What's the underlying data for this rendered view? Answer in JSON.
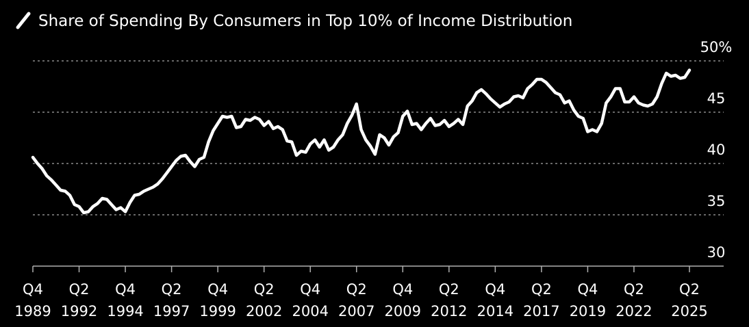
{
  "chart_data": {
    "type": "line",
    "title": "Share of Spending By Consumers in Top 10% of Income Distribution",
    "legend_icon": "line-icon",
    "xlabel": "",
    "ylabel": "",
    "ylim": [
      30,
      50
    ],
    "y_ticks": [
      {
        "value": 50,
        "label": "50%"
      },
      {
        "value": 45,
        "label": "45"
      },
      {
        "value": 40,
        "label": "40"
      },
      {
        "value": 35,
        "label": "35"
      },
      {
        "value": 30,
        "label": "30"
      }
    ],
    "grid": true,
    "x_ticks": [
      {
        "year": 1989.75,
        "quarter": "Q4",
        "label": "1989"
      },
      {
        "year": 1992.25,
        "quarter": "Q2",
        "label": "1992"
      },
      {
        "year": 1994.75,
        "quarter": "Q4",
        "label": "1994"
      },
      {
        "year": 1997.25,
        "quarter": "Q2",
        "label": "1997"
      },
      {
        "year": 1999.75,
        "quarter": "Q4",
        "label": "1999"
      },
      {
        "year": 2002.25,
        "quarter": "Q2",
        "label": "2002"
      },
      {
        "year": 2004.75,
        "quarter": "Q4",
        "label": "2004"
      },
      {
        "year": 2007.25,
        "quarter": "Q2",
        "label": "2007"
      },
      {
        "year": 2009.75,
        "quarter": "Q4",
        "label": "2009"
      },
      {
        "year": 2012.25,
        "quarter": "Q2",
        "label": "2012"
      },
      {
        "year": 2014.75,
        "quarter": "Q4",
        "label": "2014"
      },
      {
        "year": 2017.25,
        "quarter": "Q2",
        "label": "2017"
      },
      {
        "year": 2019.75,
        "quarter": "Q4",
        "label": "2019"
      },
      {
        "year": 2022.25,
        "quarter": "Q2",
        "label": "2022"
      },
      {
        "year": 2025.25,
        "quarter": "Q2",
        "label": "2025"
      }
    ],
    "series": [
      {
        "name": "Share of Spending By Consumers in Top 10% of Income Distribution",
        "color": "#ffffff",
        "x": [
          1989.75,
          1990,
          1990.25,
          1990.5,
          1990.75,
          1991,
          1991.25,
          1991.5,
          1991.75,
          1992,
          1992.25,
          1992.5,
          1992.75,
          1993,
          1993.25,
          1993.5,
          1993.75,
          1994,
          1994.25,
          1994.5,
          1994.75,
          1995,
          1995.25,
          1995.5,
          1995.75,
          1996,
          1996.25,
          1996.5,
          1996.75,
          1997,
          1997.25,
          1997.5,
          1997.75,
          1998,
          1998.25,
          1998.5,
          1998.75,
          1999,
          1999.25,
          1999.5,
          1999.75,
          2000,
          2000.25,
          2000.5,
          2000.75,
          2001,
          2001.25,
          2001.5,
          2001.75,
          2002,
          2002.25,
          2002.5,
          2002.75,
          2003,
          2003.25,
          2003.5,
          2003.75,
          2004,
          2004.25,
          2004.5,
          2004.75,
          2005,
          2005.25,
          2005.5,
          2005.75,
          2006,
          2006.25,
          2006.5,
          2006.75,
          2007,
          2007.25,
          2007.5,
          2007.75,
          2008,
          2008.25,
          2008.5,
          2008.75,
          2009,
          2009.25,
          2009.5,
          2009.75,
          2010,
          2010.25,
          2010.5,
          2010.75,
          2011,
          2011.25,
          2011.5,
          2011.75,
          2012,
          2012.25,
          2012.5,
          2012.75,
          2013,
          2013.25,
          2013.5,
          2013.75,
          2014,
          2014.25,
          2014.5,
          2014.75,
          2015,
          2015.25,
          2015.5,
          2015.75,
          2016,
          2016.25,
          2016.5,
          2016.75,
          2017,
          2017.25,
          2017.5,
          2017.75,
          2018,
          2018.25,
          2018.5,
          2018.75,
          2019,
          2019.25,
          2019.5,
          2019.75,
          2020,
          2020.25,
          2020.5,
          2020.75,
          2021,
          2021.25,
          2021.5,
          2021.75,
          2022,
          2022.25,
          2022.5,
          2022.75,
          2023,
          2023.25,
          2023.5,
          2023.75,
          2024,
          2024.25,
          2024.5,
          2024.75,
          2025,
          2025.25
        ],
        "values": [
          40.6,
          40.0,
          39.5,
          38.8,
          38.4,
          37.9,
          37.4,
          37.3,
          36.9,
          36.0,
          35.8,
          35.2,
          35.3,
          35.8,
          36.1,
          36.6,
          36.5,
          36.0,
          35.5,
          35.7,
          35.3,
          36.2,
          36.9,
          37.0,
          37.3,
          37.5,
          37.7,
          38.0,
          38.5,
          39.1,
          39.7,
          40.3,
          40.7,
          40.8,
          40.2,
          39.7,
          40.4,
          40.6,
          42.1,
          43.2,
          43.9,
          44.6,
          44.5,
          44.6,
          43.5,
          43.6,
          44.3,
          44.2,
          44.5,
          44.3,
          43.7,
          44.1,
          43.4,
          43.6,
          43.3,
          42.2,
          42.1,
          40.8,
          41.2,
          41.1,
          41.9,
          42.3,
          41.6,
          42.3,
          41.3,
          41.6,
          42.3,
          42.8,
          43.9,
          44.7,
          45.8,
          43.3,
          42.3,
          41.7,
          40.9,
          42.8,
          42.5,
          41.8,
          42.6,
          43.0,
          44.6,
          45.1,
          43.8,
          43.9,
          43.3,
          43.9,
          44.4,
          43.7,
          43.8,
          44.2,
          43.6,
          43.9,
          44.3,
          43.8,
          45.6,
          46.1,
          46.9,
          47.2,
          46.8,
          46.3,
          45.9,
          45.5,
          45.8,
          46.0,
          46.5,
          46.6,
          46.4,
          47.3,
          47.7,
          48.2,
          48.2,
          47.9,
          47.4,
          46.9,
          46.7,
          45.9,
          46.1,
          45.2,
          44.6,
          44.4,
          43.1,
          43.3,
          43.1,
          43.9,
          45.9,
          46.5,
          47.3,
          47.3,
          46.0,
          46.0,
          46.5,
          45.9,
          45.7,
          45.6,
          45.8,
          46.5,
          47.8,
          48.8,
          48.5,
          48.6,
          48.3,
          48.4,
          49.1
        ]
      }
    ]
  }
}
